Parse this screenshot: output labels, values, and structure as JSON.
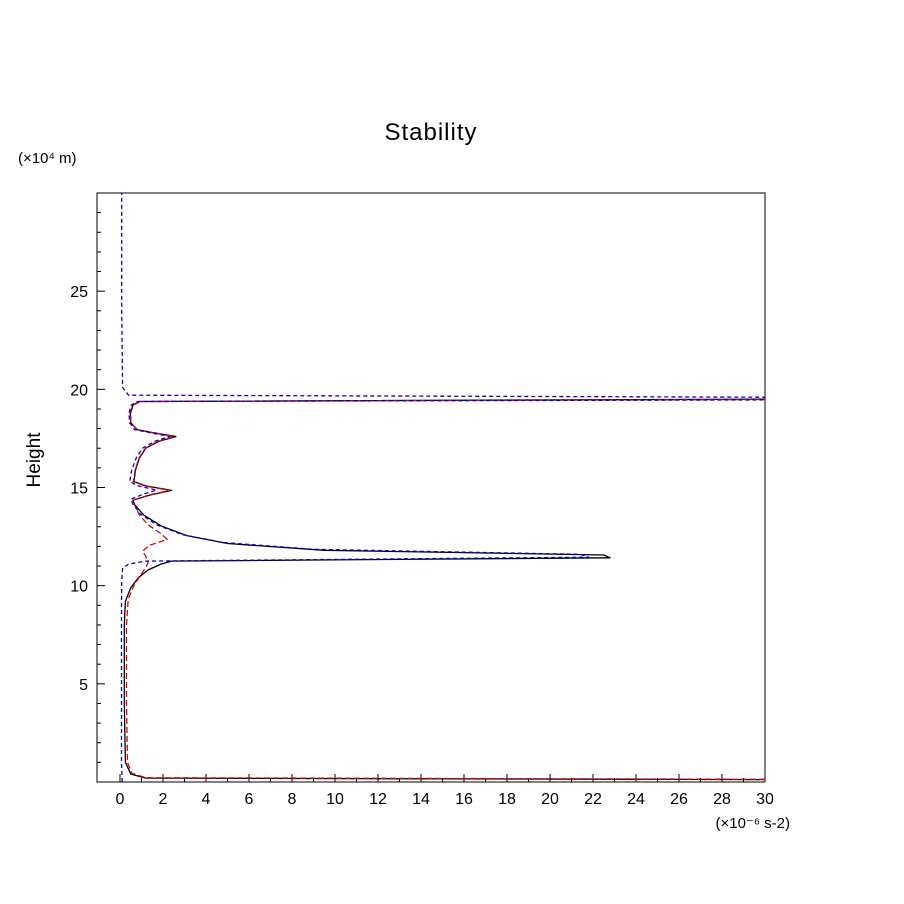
{
  "chart_data": {
    "type": "line",
    "title": "Stability",
    "ylabel": "Height",
    "y_unit_label": "(×10⁴ m)",
    "x_unit_label": "(×10⁻⁶ s-2)",
    "xlim": [
      -1.07,
      30
    ],
    "ylim": [
      0,
      30
    ],
    "grid": false,
    "legend": "none",
    "xticks": [
      0,
      2,
      4,
      6,
      8,
      10,
      12,
      14,
      16,
      18,
      20,
      22,
      24,
      26,
      28,
      30
    ],
    "xminorticks": [
      1,
      3,
      5,
      7,
      9,
      11,
      13,
      15,
      17,
      19,
      21,
      23,
      25,
      27,
      29
    ],
    "yticks": [
      5,
      10,
      15,
      20,
      25
    ],
    "yminorticks": [
      1,
      2,
      3,
      4,
      6,
      7,
      8,
      9,
      11,
      12,
      13,
      14,
      16,
      17,
      18,
      19,
      21,
      22,
      23,
      24,
      26,
      27,
      28,
      29
    ],
    "series": [
      {
        "name": "black-solid",
        "color": "#000000",
        "dash": null,
        "points": [
          [
            30,
            0.12
          ],
          [
            1.2,
            0.2
          ],
          [
            0.5,
            0.4
          ],
          [
            0.25,
            1.0
          ],
          [
            0.2,
            4.0
          ],
          [
            0.2,
            8.0
          ],
          [
            0.25,
            9.2
          ],
          [
            0.5,
            9.9
          ],
          [
            0.85,
            10.4
          ],
          [
            1.3,
            10.8
          ],
          [
            1.9,
            11.1
          ],
          [
            2.4,
            11.25
          ],
          [
            22.8,
            11.42
          ],
          [
            22.5,
            11.56
          ],
          [
            9.5,
            11.8
          ],
          [
            5.0,
            12.15
          ],
          [
            3.1,
            12.55
          ],
          [
            1.9,
            13.05
          ],
          [
            1.1,
            13.6
          ],
          [
            0.7,
            14.1
          ],
          [
            0.6,
            14.35
          ],
          [
            1.4,
            14.62
          ],
          [
            2.4,
            14.85
          ],
          [
            1.2,
            15.08
          ],
          [
            0.65,
            15.3
          ],
          [
            0.72,
            15.9
          ],
          [
            0.9,
            16.5
          ],
          [
            1.2,
            17.0
          ],
          [
            1.8,
            17.35
          ],
          [
            2.6,
            17.6
          ],
          [
            1.5,
            17.8
          ],
          [
            0.8,
            17.95
          ],
          [
            0.5,
            18.3
          ],
          [
            0.48,
            18.8
          ],
          [
            0.6,
            19.2
          ],
          [
            0.9,
            19.38
          ],
          [
            30,
            19.5
          ]
        ]
      },
      {
        "name": "red-dashed",
        "color": "#dd0000",
        "dash": "6 3",
        "points": [
          [
            30,
            0.14
          ],
          [
            1.2,
            0.22
          ],
          [
            0.55,
            0.45
          ],
          [
            0.35,
            1.0
          ],
          [
            0.3,
            4.0
          ],
          [
            0.3,
            8.0
          ],
          [
            0.38,
            9.3
          ],
          [
            0.6,
            9.9
          ],
          [
            0.9,
            10.45
          ],
          [
            1.15,
            10.85
          ],
          [
            1.3,
            11.15
          ],
          [
            1.2,
            11.5
          ],
          [
            1.05,
            11.75
          ],
          [
            1.35,
            12.05
          ],
          [
            2.2,
            12.35
          ],
          [
            1.9,
            12.65
          ],
          [
            1.3,
            13.1
          ],
          [
            0.9,
            13.6
          ],
          [
            0.68,
            14.1
          ],
          [
            0.6,
            14.35
          ],
          [
            1.35,
            14.62
          ],
          [
            2.3,
            14.85
          ],
          [
            1.15,
            15.08
          ],
          [
            0.62,
            15.3
          ],
          [
            0.7,
            15.9
          ],
          [
            0.88,
            16.5
          ],
          [
            1.18,
            17.0
          ],
          [
            1.75,
            17.35
          ],
          [
            2.5,
            17.6
          ],
          [
            1.45,
            17.8
          ],
          [
            0.78,
            17.95
          ],
          [
            0.5,
            18.3
          ],
          [
            0.5,
            18.8
          ],
          [
            0.62,
            19.2
          ],
          [
            0.95,
            19.38
          ],
          [
            30,
            19.48
          ]
        ]
      },
      {
        "name": "blue-dashed",
        "color": "#0000dd",
        "dash": "4 3",
        "points": [
          [
            0.1,
            0.0
          ],
          [
            0.07,
            1.0
          ],
          [
            0.07,
            5.0
          ],
          [
            0.07,
            9.0
          ],
          [
            0.08,
            10.2
          ],
          [
            0.12,
            10.9
          ],
          [
            0.4,
            11.1
          ],
          [
            1.2,
            11.25
          ],
          [
            21.8,
            11.45
          ],
          [
            21.4,
            11.6
          ],
          [
            9.0,
            11.85
          ],
          [
            4.8,
            12.2
          ],
          [
            2.9,
            12.6
          ],
          [
            1.7,
            13.1
          ],
          [
            0.95,
            13.65
          ],
          [
            0.6,
            14.15
          ],
          [
            0.5,
            14.4
          ],
          [
            1.05,
            14.65
          ],
          [
            1.7,
            14.87
          ],
          [
            0.85,
            15.08
          ],
          [
            0.45,
            15.3
          ],
          [
            0.55,
            15.9
          ],
          [
            0.75,
            16.5
          ],
          [
            1.05,
            17.0
          ],
          [
            1.6,
            17.35
          ],
          [
            2.3,
            17.6
          ],
          [
            1.35,
            17.8
          ],
          [
            0.68,
            17.95
          ],
          [
            0.45,
            18.3
          ],
          [
            0.42,
            18.8
          ],
          [
            0.52,
            19.2
          ],
          [
            0.8,
            19.38
          ],
          [
            30,
            19.46
          ],
          [
            30,
            19.6
          ],
          [
            0.4,
            19.7
          ],
          [
            0.12,
            20.1
          ],
          [
            0.08,
            24.0
          ],
          [
            0.08,
            30.0
          ]
        ]
      }
    ]
  }
}
